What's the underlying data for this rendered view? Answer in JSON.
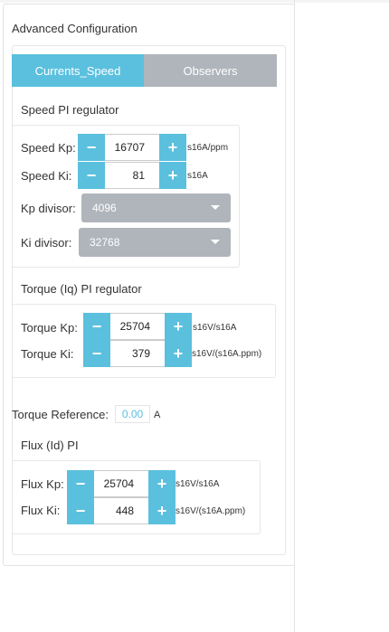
{
  "panel": {
    "title": "Advanced Configuration"
  },
  "tabs": [
    {
      "label": "Currents_Speed",
      "active": true
    },
    {
      "label": "Observers",
      "active": false
    }
  ],
  "speed": {
    "title": "Speed PI regulator",
    "kp": {
      "label": "Speed Kp:",
      "value": "16707",
      "unit": "s16A/ppm"
    },
    "ki": {
      "label": "Speed Ki:",
      "value": "81",
      "unit": "s16A"
    },
    "kp_divisor": {
      "label": "Kp divisor:",
      "value": "4096"
    },
    "ki_divisor": {
      "label": "Ki divisor:",
      "value": "32768"
    }
  },
  "torque": {
    "title": "Torque (Iq) PI regulator",
    "kp": {
      "label": "Torque Kp:",
      "value": "25704",
      "unit": "s16V/s16A"
    },
    "ki": {
      "label": "Torque Ki:",
      "value": "379",
      "unit": "s16V/(s16A.ppm)"
    }
  },
  "torque_reference": {
    "label": "Torque Reference:",
    "value": "0.00",
    "unit": "A"
  },
  "flux": {
    "title": "Flux (Id) PI",
    "kp": {
      "label": "Flux Kp:",
      "value": "25704",
      "unit": "s16V/s16A"
    },
    "ki": {
      "label": "Flux Ki:",
      "value": "448",
      "unit": "s16V/(s16A.ppm)"
    }
  },
  "buttons": {
    "minus": "−",
    "plus": "+"
  },
  "colors": {
    "accent": "#5bc0de",
    "inactive_tab": "#b0b5bc"
  }
}
